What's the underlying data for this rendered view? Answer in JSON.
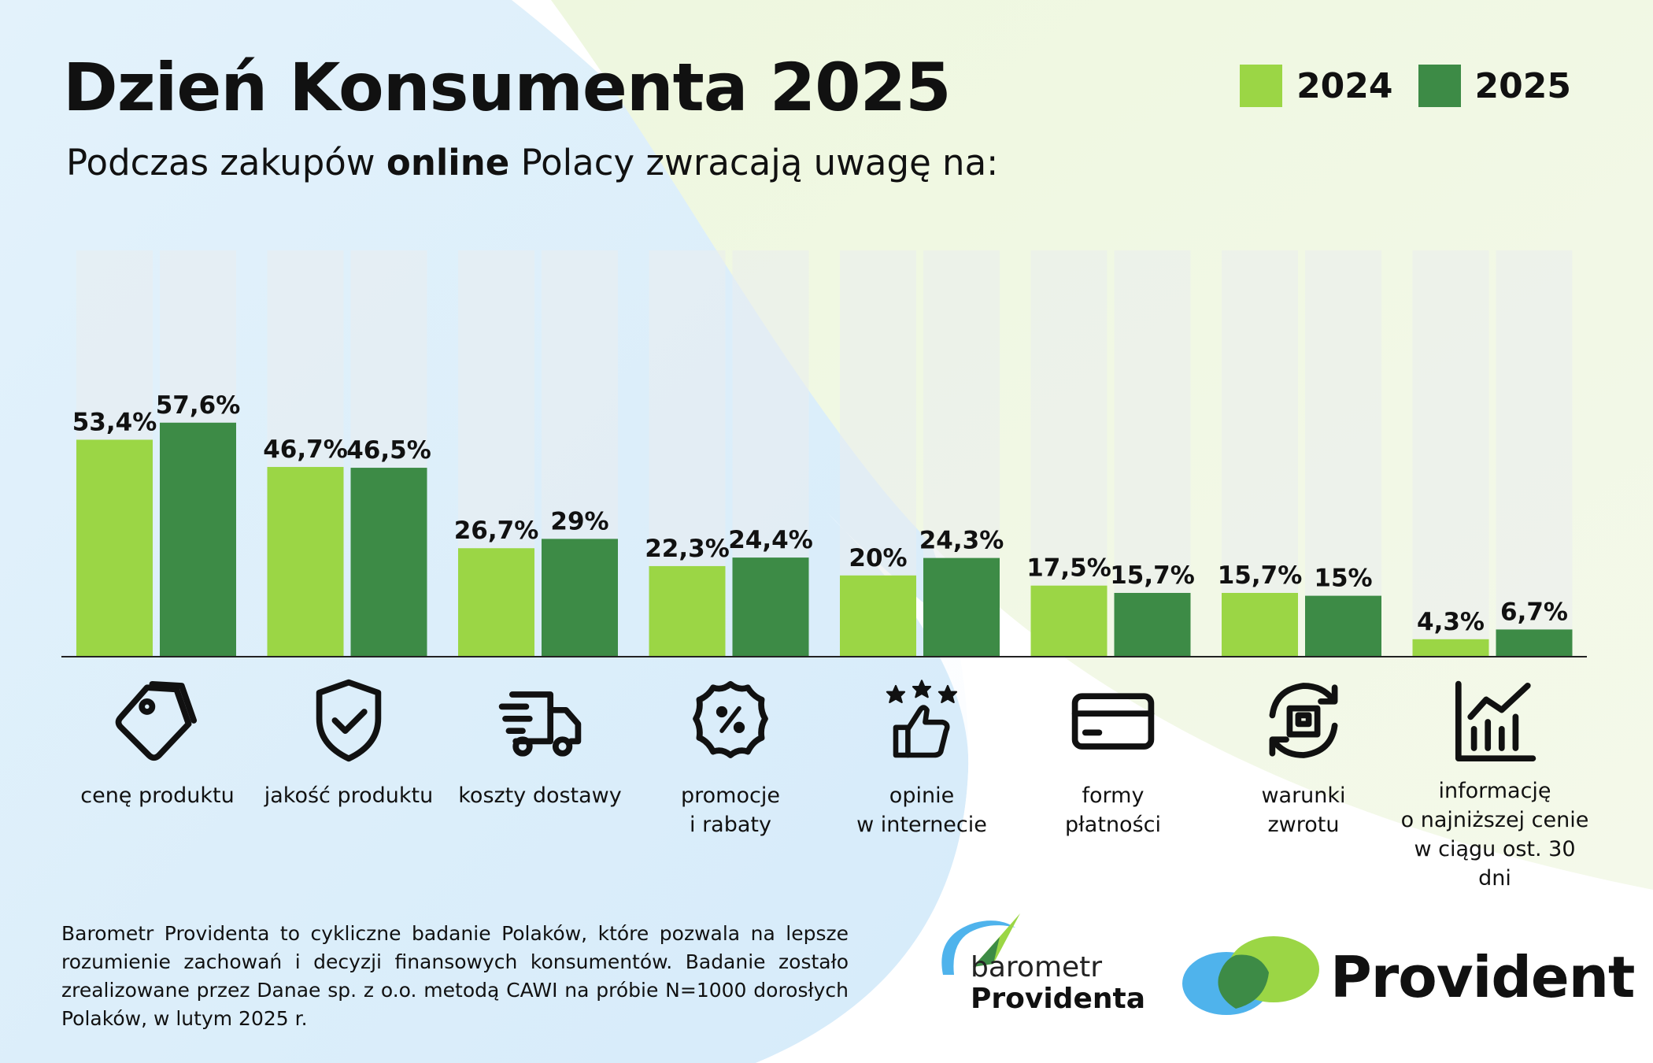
{
  "title": "Dzień Konsumenta 2025",
  "subtitle": {
    "before": "Podczas zakupów ",
    "bold": "online",
    "after": " Polacy zwracają uwagę na:"
  },
  "colors": {
    "series_2024": "#9bd645",
    "series_2025": "#3d8b46",
    "track": "#e9ecef",
    "bg_blue": "#dff0fb",
    "bg_green": "#eef6dc"
  },
  "chart_data": {
    "type": "bar",
    "categories": [
      "cenę produktu",
      "jakość produktu",
      "koszty dostawy",
      "promocje\ni rabaty",
      "opinie\nw internecie",
      "formy\npłatności",
      "warunki\nzwrotu",
      "informację\no najniższej cenie\nw ciągu ost. 30 dni"
    ],
    "series": [
      {
        "name": "2024",
        "values": [
          53.4,
          46.7,
          26.7,
          22.3,
          20,
          17.5,
          15.7,
          4.3
        ],
        "labels": [
          "53,4%",
          "46,7%",
          "26,7%",
          "22,3%",
          "20%",
          "17,5%",
          "15,7%",
          "4,3%"
        ]
      },
      {
        "name": "2025",
        "values": [
          57.6,
          46.5,
          29,
          24.4,
          24.3,
          15.7,
          15,
          6.7
        ],
        "labels": [
          "57,6%",
          "46,5%",
          "29%",
          "24,4%",
          "24,3%",
          "15,7%",
          "15%",
          "6,7%"
        ]
      }
    ],
    "ylim": [
      0,
      100
    ],
    "legend_position": "top-right",
    "grid": false
  },
  "icons": [
    "price-tags-icon",
    "shield-check-icon",
    "delivery-truck-icon",
    "discount-badge-icon",
    "thumbs-up-stars-icon",
    "credit-card-icon",
    "return-box-icon",
    "bar-chart-growth-icon"
  ],
  "footnote": "Barometr Providenta to cykliczne badanie Polaków, które pozwala na lepsze rozumienie zachowań i decyzji finansowych konsumentów. Badanie zostało zrealizowane przez Danae sp. z o.o. metodą CAWI na próbie N=1000 dorosłych Polaków, w lutym 2025 r.",
  "logos": {
    "barometr_line1": "barometr",
    "barometr_line2": "Providenta",
    "provident": "Provident"
  }
}
